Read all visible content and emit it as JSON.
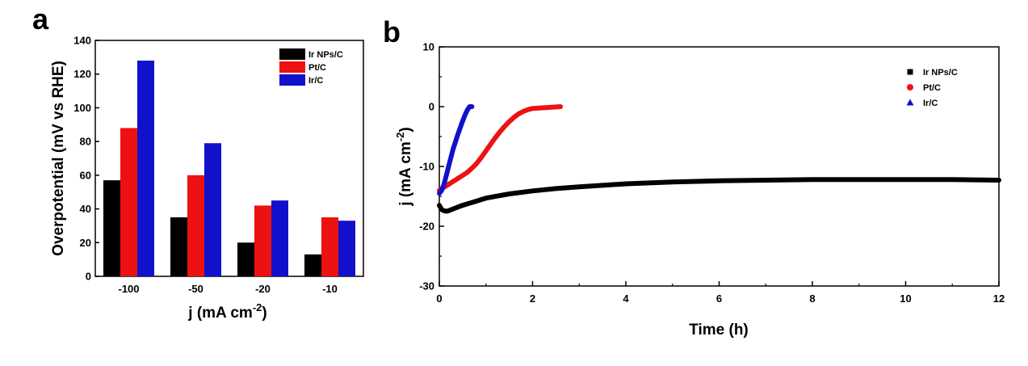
{
  "colors": {
    "black": "#000000",
    "red": "#ee1111",
    "blue": "#1111cc"
  },
  "chart_data": [
    {
      "panel": "a",
      "type": "bar",
      "categories": [
        "-100",
        "-50",
        "-20",
        "-10"
      ],
      "series": [
        {
          "name": "Ir NPs/C",
          "color": "#000000",
          "values": [
            57,
            35,
            20,
            13
          ]
        },
        {
          "name": "Pt/C",
          "color": "#ee1111",
          "values": [
            88,
            60,
            42,
            35
          ]
        },
        {
          "name": "Ir/C",
          "color": "#1111cc",
          "values": [
            128,
            79,
            45,
            33
          ]
        }
      ],
      "ylim": [
        0,
        140
      ],
      "yticks": [
        "0",
        "20",
        "40",
        "60",
        "80",
        "100",
        "120",
        "140"
      ],
      "ylabel": "Overpotential (mV vs RHE)",
      "xlabel_main": "j (mA cm",
      "xlabel_sup": "-2",
      "xlabel_close": ")",
      "legend_position": "top-right",
      "grid": false
    },
    {
      "panel": "b",
      "type": "line",
      "xlim": [
        0,
        12
      ],
      "ylim": [
        -30,
        10
      ],
      "xticks": [
        "0",
        "2",
        "4",
        "6",
        "8",
        "10",
        "12"
      ],
      "yticks": [
        "-30",
        "-20",
        "-10",
        "0",
        "10"
      ],
      "xlabel": "Time (h)",
      "ylabel_main": "j (mA cm",
      "ylabel_sup": "-2",
      "ylabel_close": ")",
      "legend_position": "top-right",
      "grid": false,
      "series": [
        {
          "name": "Ir NPs/C",
          "color": "#000000",
          "marker": "square",
          "x": [
            0,
            0.05,
            0.1,
            0.15,
            0.2,
            0.3,
            0.5,
            0.75,
            1,
            1.5,
            2,
            2.5,
            3,
            4,
            5,
            6,
            7,
            8,
            9,
            10,
            11,
            12
          ],
          "y": [
            -16.5,
            -17.2,
            -17.4,
            -17.5,
            -17.4,
            -17.1,
            -16.5,
            -15.9,
            -15.3,
            -14.6,
            -14.1,
            -13.7,
            -13.4,
            -12.9,
            -12.6,
            -12.4,
            -12.3,
            -12.2,
            -12.2,
            -12.2,
            -12.2,
            -12.3
          ]
        },
        {
          "name": "Pt/C",
          "color": "#ee1111",
          "marker": "circle",
          "x": [
            0,
            0.1,
            0.2,
            0.3,
            0.4,
            0.5,
            0.6,
            0.7,
            0.8,
            0.9,
            1.0,
            1.1,
            1.2,
            1.3,
            1.4,
            1.5,
            1.6,
            1.7,
            1.8,
            1.9,
            2.0,
            2.2,
            2.4,
            2.6
          ],
          "y": [
            -14.0,
            -13.5,
            -13.0,
            -12.5,
            -12.0,
            -11.5,
            -11.0,
            -10.3,
            -9.5,
            -8.5,
            -7.4,
            -6.3,
            -5.2,
            -4.2,
            -3.3,
            -2.5,
            -1.8,
            -1.2,
            -0.8,
            -0.5,
            -0.3,
            -0.2,
            -0.1,
            0.0
          ]
        },
        {
          "name": "Ir/C",
          "color": "#1111cc",
          "marker": "triangle",
          "x": [
            0,
            0.05,
            0.1,
            0.15,
            0.2,
            0.25,
            0.3,
            0.35,
            0.4,
            0.45,
            0.5,
            0.55,
            0.6,
            0.65,
            0.7
          ],
          "y": [
            -14.5,
            -14.0,
            -13.0,
            -11.5,
            -10.0,
            -8.5,
            -7.0,
            -5.8,
            -4.6,
            -3.5,
            -2.4,
            -1.4,
            -0.6,
            0.0,
            0.0
          ]
        }
      ]
    }
  ]
}
